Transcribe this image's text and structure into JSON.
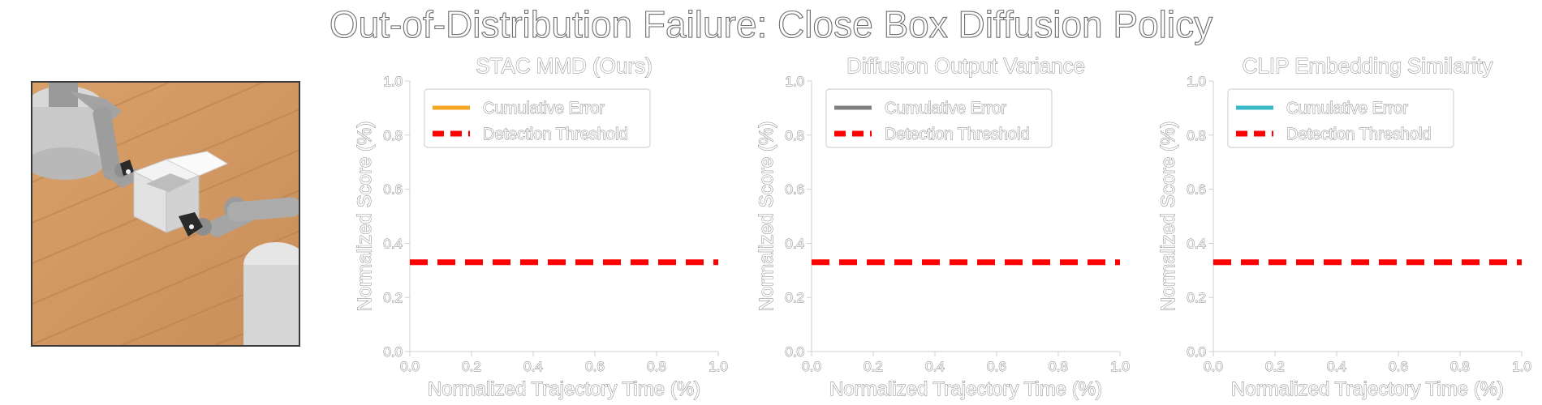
{
  "figure": {
    "title": "Out-of-Distribution Failure: Close Box Diffusion Policy",
    "scene_image": "robot-close-box-scene"
  },
  "chart_data": [
    {
      "type": "line",
      "title": "STAC MMD (Ours)",
      "xlabel": "Normalized Trajectory Time (%)",
      "ylabel": "Normalized Score (%)",
      "xlim": [
        0.0,
        1.0
      ],
      "ylim": [
        0.0,
        1.0
      ],
      "xticks": [
        "0.0",
        "0.2",
        "0.4",
        "0.6",
        "0.8",
        "1.0"
      ],
      "yticks": [
        "0.0",
        "0.2",
        "0.4",
        "0.6",
        "0.8",
        "1.0"
      ],
      "grid": false,
      "legend_position": "top-left",
      "series": [
        {
          "name": "Cumulative Error",
          "color": "#f5a623",
          "style": "solid",
          "x": [],
          "y": []
        },
        {
          "name": "Detection Threshold",
          "color": "#ff0000",
          "style": "dashed",
          "x": [
            0.0,
            1.0
          ],
          "y": [
            0.33,
            0.33
          ]
        }
      ]
    },
    {
      "type": "line",
      "title": "Diffusion Output Variance",
      "xlabel": "Normalized Trajectory Time (%)",
      "ylabel": "Normalized Score (%)",
      "xlim": [
        0.0,
        1.0
      ],
      "ylim": [
        0.0,
        1.0
      ],
      "xticks": [
        "0.0",
        "0.2",
        "0.4",
        "0.6",
        "0.8",
        "1.0"
      ],
      "yticks": [
        "0.0",
        "0.2",
        "0.4",
        "0.6",
        "0.8",
        "1.0"
      ],
      "grid": false,
      "legend_position": "top-left",
      "series": [
        {
          "name": "Cumulative Error",
          "color": "#808080",
          "style": "solid",
          "x": [],
          "y": []
        },
        {
          "name": "Detection Threshold",
          "color": "#ff0000",
          "style": "dashed",
          "x": [
            0.0,
            1.0
          ],
          "y": [
            0.33,
            0.33
          ]
        }
      ]
    },
    {
      "type": "line",
      "title": "CLIP Embedding Similarity",
      "xlabel": "Normalized Trajectory Time (%)",
      "ylabel": "Normalized Score (%)",
      "xlim": [
        0.0,
        1.0
      ],
      "ylim": [
        0.0,
        1.0
      ],
      "xticks": [
        "0.0",
        "0.2",
        "0.4",
        "0.6",
        "0.8",
        "1.0"
      ],
      "yticks": [
        "0.0",
        "0.2",
        "0.4",
        "0.6",
        "0.8",
        "1.0"
      ],
      "grid": false,
      "legend_position": "top-left",
      "series": [
        {
          "name": "Cumulative Error",
          "color": "#3ab8c8",
          "style": "solid",
          "x": [],
          "y": []
        },
        {
          "name": "Detection Threshold",
          "color": "#ff0000",
          "style": "dashed",
          "x": [
            0.0,
            1.0
          ],
          "y": [
            0.33,
            0.33
          ]
        }
      ]
    }
  ]
}
